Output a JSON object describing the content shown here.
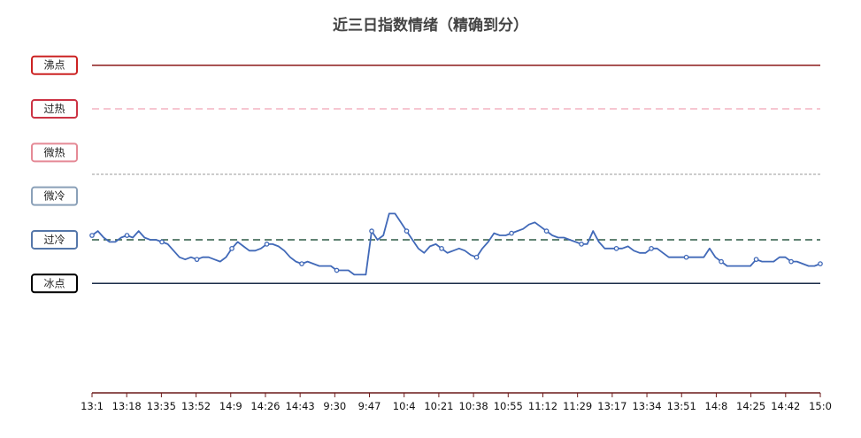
{
  "chart_data": {
    "type": "line",
    "title": "近三日指数情绪（精确到分）",
    "xlabel": "",
    "ylabel": "",
    "ylim": [
      -3,
      7.5
    ],
    "grid": false,
    "levels": [
      {
        "name": "沸点",
        "value": 7,
        "label_color": "#cc2222",
        "line_color": "#8b1a1a",
        "line_style": "solid"
      },
      {
        "name": "过热",
        "value": 6,
        "label_color": "#cc3344",
        "line_color": "#f4b3c2",
        "line_style": "dashed"
      },
      {
        "name": "微热",
        "value": 5,
        "label_color": "#e58a96",
        "line_color": "",
        "line_style": "none"
      },
      {
        "name": "微冷",
        "value": 4,
        "label_color": "#8aa0b8",
        "line_color": "",
        "line_style": "none"
      },
      {
        "name": "过冷",
        "value": 3,
        "label_color": "#5577aa",
        "line_color": "#2d5a45",
        "line_style": "dashed"
      },
      {
        "name": "冰点",
        "value": 2,
        "label_color": "#000000",
        "line_color": "#1c2e4a",
        "line_style": "solid"
      }
    ],
    "thresholds": [
      {
        "value": 4.5,
        "color": "#999999",
        "style": "dotted"
      }
    ],
    "x_tick_labels": [
      "13:1",
      "13:18",
      "13:35",
      "13:52",
      "14:9",
      "14:26",
      "14:43",
      "9:30",
      "9:47",
      "10:4",
      "10:21",
      "10:38",
      "10:55",
      "11:12",
      "11:29",
      "13:17",
      "13:34",
      "13:51",
      "14:8",
      "14:25",
      "14:42",
      "15:0"
    ],
    "series": [
      {
        "color": "#4169b8",
        "values": [
          3.1,
          3.2,
          3.05,
          2.95,
          2.95,
          3.05,
          3.1,
          3.05,
          3.2,
          3.05,
          3.0,
          3.0,
          2.95,
          2.9,
          2.75,
          2.6,
          2.55,
          2.6,
          2.55,
          2.6,
          2.6,
          2.55,
          2.5,
          2.6,
          2.8,
          2.95,
          2.85,
          2.75,
          2.75,
          2.8,
          2.9,
          2.9,
          2.85,
          2.75,
          2.6,
          2.5,
          2.45,
          2.5,
          2.45,
          2.4,
          2.4,
          2.4,
          2.3,
          2.3,
          2.3,
          2.2,
          2.2,
          2.2,
          3.2,
          3.0,
          3.1,
          3.6,
          3.6,
          3.4,
          3.2,
          3.0,
          2.8,
          2.7,
          2.85,
          2.9,
          2.8,
          2.7,
          2.75,
          2.8,
          2.75,
          2.65,
          2.6,
          2.8,
          2.95,
          3.15,
          3.1,
          3.1,
          3.15,
          3.2,
          3.25,
          3.35,
          3.4,
          3.3,
          3.2,
          3.1,
          3.05,
          3.05,
          3.0,
          2.95,
          2.9,
          2.9,
          3.2,
          2.95,
          2.8,
          2.8,
          2.8,
          2.8,
          2.85,
          2.75,
          2.7,
          2.7,
          2.8,
          2.8,
          2.7,
          2.6,
          2.6,
          2.6,
          2.6,
          2.6,
          2.6,
          2.6,
          2.8,
          2.6,
          2.5,
          2.4,
          2.4,
          2.4,
          2.4,
          2.4,
          2.55,
          2.5,
          2.5,
          2.5,
          2.6,
          2.6,
          2.5,
          2.5,
          2.45,
          2.4,
          2.4,
          2.45
        ]
      }
    ]
  }
}
